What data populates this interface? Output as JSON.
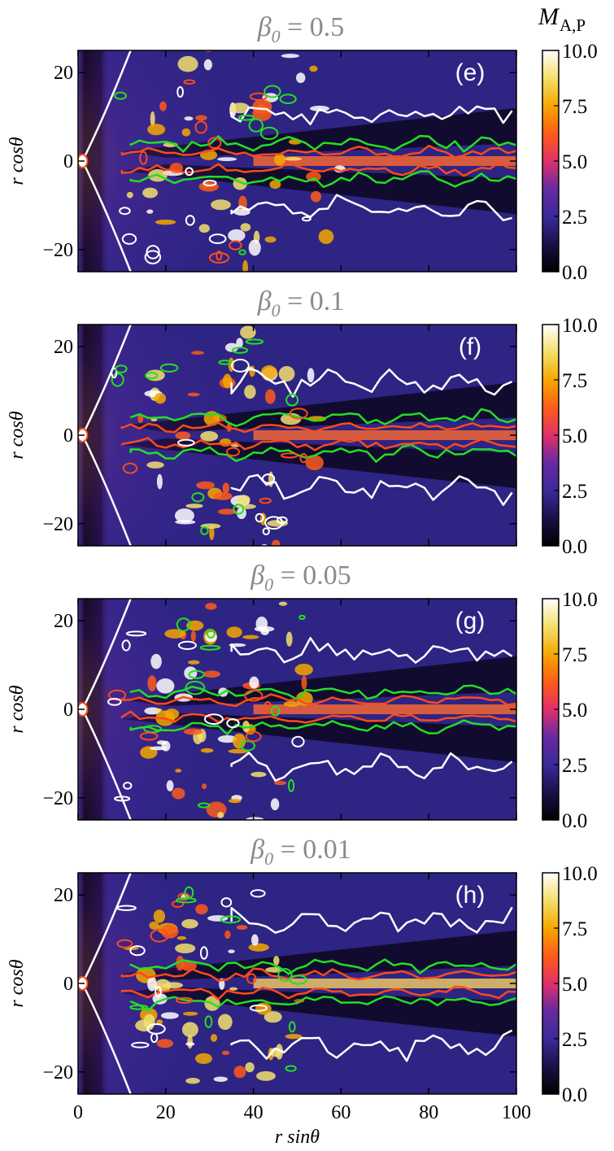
{
  "figure": {
    "colorbar_label_main": "M",
    "colorbar_label_sub": "A,P"
  },
  "chart_data": [
    {
      "type": "heatmap",
      "panel_letter": "(e)",
      "title_symbol": "β",
      "title_sub": "0",
      "title_value": "= 0.5",
      "ylabel": "r cosθ",
      "xlabel": "",
      "xlim": [
        0,
        100
      ],
      "ylim": [
        -25,
        25
      ],
      "yticks": [
        -20,
        0,
        20
      ],
      "xticks": [],
      "colorbar": {
        "label": "M_A,P",
        "range": [
          0,
          10
        ],
        "ticks": [
          "0.0",
          "2.5",
          "5.0",
          "7.5",
          "10.0"
        ],
        "colormap": "CMRmap"
      },
      "contours": [
        {
          "color": "#ffffff",
          "meaning": "white"
        },
        {
          "color": "#ff4a1a",
          "meaning": "orange-red"
        },
        {
          "color": "#22e022",
          "meaning": "green"
        }
      ]
    },
    {
      "type": "heatmap",
      "panel_letter": "(f)",
      "title_symbol": "β",
      "title_sub": "0",
      "title_value": "= 0.1",
      "ylabel": "r cosθ",
      "xlabel": "",
      "xlim": [
        0,
        100
      ],
      "ylim": [
        -25,
        25
      ],
      "yticks": [
        -20,
        0,
        20
      ],
      "xticks": [],
      "colorbar": {
        "label": "M_A,P",
        "range": [
          0,
          10
        ],
        "ticks": [
          "0.0",
          "2.5",
          "5.0",
          "7.5",
          "10.0"
        ],
        "colormap": "CMRmap"
      }
    },
    {
      "type": "heatmap",
      "panel_letter": "(g)",
      "title_symbol": "β",
      "title_sub": "0",
      "title_value": "= 0.05",
      "ylabel": "r cosθ",
      "xlabel": "",
      "xlim": [
        0,
        100
      ],
      "ylim": [
        -25,
        25
      ],
      "yticks": [
        -20,
        0,
        20
      ],
      "xticks": [],
      "colorbar": {
        "label": "M_A,P",
        "range": [
          0,
          10
        ],
        "ticks": [
          "0.0",
          "2.5",
          "5.0",
          "7.5",
          "10.0"
        ],
        "colormap": "CMRmap"
      }
    },
    {
      "type": "heatmap",
      "panel_letter": "(h)",
      "title_symbol": "β",
      "title_sub": "0",
      "title_value": "= 0.01",
      "ylabel": "r cosθ",
      "xlabel": "r sinθ",
      "xlim": [
        0,
        100
      ],
      "ylim": [
        -25,
        25
      ],
      "yticks": [
        -20,
        0,
        20
      ],
      "xticks": [
        0,
        20,
        40,
        60,
        80,
        100
      ],
      "colorbar": {
        "label": "M_A,P",
        "range": [
          0,
          10
        ],
        "ticks": [
          "0.0",
          "2.5",
          "5.0",
          "7.5",
          "10.0"
        ],
        "colormap": "CMRmap"
      }
    }
  ]
}
